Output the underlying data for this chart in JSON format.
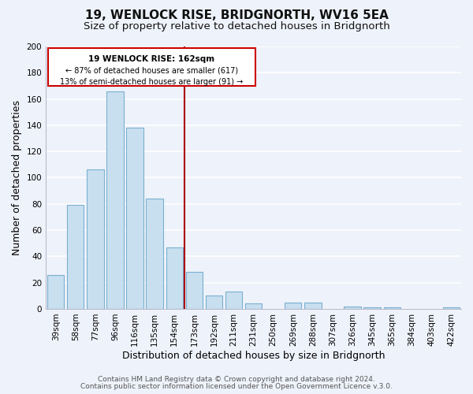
{
  "title": "19, WENLOCK RISE, BRIDGNORTH, WV16 5EA",
  "subtitle": "Size of property relative to detached houses in Bridgnorth",
  "xlabel": "Distribution of detached houses by size in Bridgnorth",
  "ylabel": "Number of detached properties",
  "bar_labels": [
    "39sqm",
    "58sqm",
    "77sqm",
    "96sqm",
    "116sqm",
    "135sqm",
    "154sqm",
    "173sqm",
    "192sqm",
    "211sqm",
    "231sqm",
    "250sqm",
    "269sqm",
    "288sqm",
    "307sqm",
    "326sqm",
    "345sqm",
    "365sqm",
    "384sqm",
    "403sqm",
    "422sqm"
  ],
  "bar_values": [
    26,
    79,
    106,
    166,
    138,
    84,
    47,
    28,
    10,
    13,
    4,
    0,
    5,
    5,
    0,
    2,
    1,
    1,
    0,
    0,
    1
  ],
  "bar_color": "#c8dff0",
  "bar_edge_color": "#7ab0d0",
  "vline_color": "#aa0000",
  "ylim": [
    0,
    200
  ],
  "yticks": [
    0,
    20,
    40,
    60,
    80,
    100,
    120,
    140,
    160,
    180,
    200
  ],
  "annotation_box_color": "#ffffff",
  "annotation_box_edge": "#cc0000",
  "annotation_title": "19 WENLOCK RISE: 162sqm",
  "annotation_line1": "← 87% of detached houses are smaller (617)",
  "annotation_line2": "13% of semi-detached houses are larger (91) →",
  "footer_line1": "Contains HM Land Registry data © Crown copyright and database right 2024.",
  "footer_line2": "Contains public sector information licensed under the Open Government Licence v.3.0.",
  "background_color": "#eef2fa",
  "grid_color": "#ffffff",
  "title_fontsize": 11,
  "subtitle_fontsize": 9.5,
  "axis_label_fontsize": 9,
  "tick_fontsize": 7.5,
  "footer_fontsize": 6.5,
  "vline_index": 6.5
}
